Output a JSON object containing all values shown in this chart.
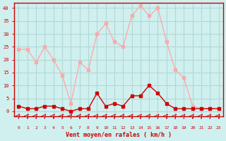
{
  "hours": [
    0,
    1,
    2,
    3,
    4,
    5,
    6,
    7,
    8,
    9,
    10,
    11,
    12,
    13,
    14,
    15,
    16,
    17,
    18,
    19,
    20,
    21,
    22,
    23
  ],
  "vent_moyen": [
    2,
    1,
    1,
    2,
    2,
    1,
    0,
    1,
    1,
    7,
    2,
    3,
    2,
    6,
    6,
    10,
    7,
    3,
    1,
    1,
    1,
    1,
    1,
    1
  ],
  "rafales": [
    24,
    24,
    19,
    25,
    20,
    14,
    3,
    19,
    16,
    30,
    34,
    27,
    25,
    37,
    41,
    37,
    40,
    27,
    16,
    13,
    2,
    1,
    1,
    1
  ],
  "line_color_moyen": "#cc0000",
  "line_color_rafales": "#ffaaaa",
  "marker_color_moyen": "#cc0000",
  "marker_color_rafales": "#ffaaaa",
  "bg_color": "#d0f0f0",
  "grid_color": "#b0d8d8",
  "axis_color": "#cc0000",
  "xlabel": "Vent moyen/en rafales ( km/h )",
  "xlabel_color": "#cc0000",
  "tick_color": "#cc0000",
  "yticks": [
    0,
    5,
    10,
    15,
    20,
    25,
    30,
    35,
    40
  ],
  "ylim": [
    -2,
    42
  ],
  "xlim": [
    -0.5,
    23.5
  ]
}
